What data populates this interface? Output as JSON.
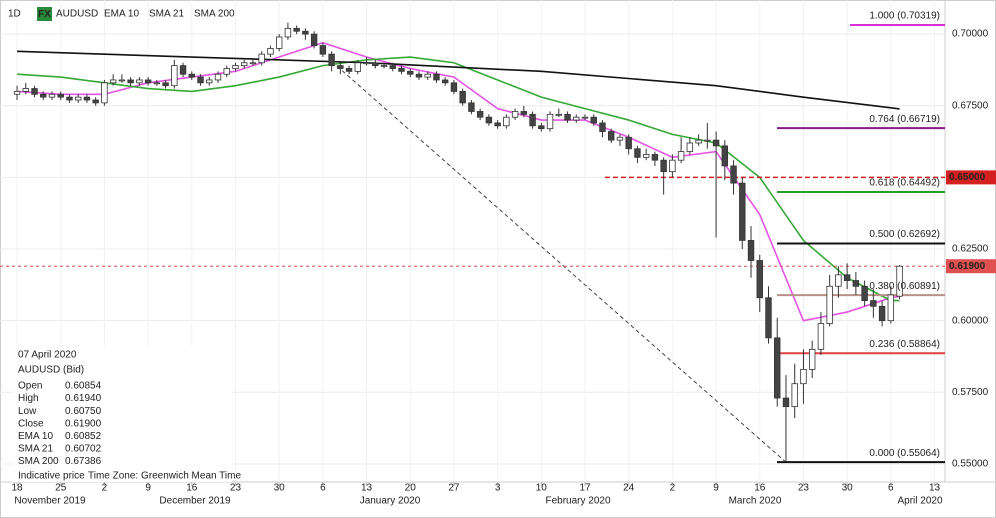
{
  "chart_data": {
    "type": "candlestick",
    "interval": "1D",
    "badge": "FX",
    "symbol": "AUDUSD",
    "open": [
      0.679,
      0.68,
      0.681,
      0.679,
      0.678,
      0.679,
      0.678,
      0.677,
      0.678,
      0.677,
      0.676,
      0.683,
      0.684,
      0.684,
      0.683,
      0.684,
      0.683,
      0.683,
      0.682,
      0.689,
      0.686,
      0.685,
      0.683,
      0.684,
      0.686,
      0.688,
      0.689,
      0.69,
      0.69,
      0.693,
      0.695,
      0.699,
      0.702,
      0.701,
      0.7,
      0.696,
      0.693,
      0.689,
      0.688,
      0.687,
      0.69,
      0.69,
      0.689,
      0.689,
      0.688,
      0.687,
      0.686,
      0.685,
      0.686,
      0.684,
      0.683,
      0.68,
      0.676,
      0.673,
      0.671,
      0.669,
      0.668,
      0.671,
      0.673,
      0.672,
      0.668,
      0.667,
      0.672,
      0.672,
      0.67,
      0.671,
      0.671,
      0.669,
      0.666,
      0.663,
      0.664,
      0.66,
      0.657,
      0.658,
      0.656,
      0.652,
      0.656,
      0.659,
      0.662,
      0.663,
      0.663,
      0.661,
      0.654,
      0.648,
      0.628,
      0.621,
      0.608,
      0.594,
      0.573,
      0.57,
      0.578,
      0.583,
      0.59,
      0.599,
      0.612,
      0.616,
      0.614,
      0.612,
      0.607,
      0.605,
      0.6,
      0.60854
    ],
    "high": [
      0.682,
      0.683,
      0.682,
      0.68,
      0.68,
      0.68,
      0.679,
      0.679,
      0.679,
      0.678,
      0.684,
      0.686,
      0.686,
      0.685,
      0.685,
      0.685,
      0.684,
      0.684,
      0.691,
      0.69,
      0.687,
      0.686,
      0.685,
      0.687,
      0.689,
      0.69,
      0.691,
      0.691,
      0.694,
      0.696,
      0.7,
      0.704,
      0.703,
      0.702,
      0.701,
      0.697,
      0.694,
      0.69,
      0.689,
      0.691,
      0.692,
      0.691,
      0.69,
      0.69,
      0.689,
      0.688,
      0.687,
      0.687,
      0.687,
      0.685,
      0.684,
      0.681,
      0.677,
      0.674,
      0.672,
      0.67,
      0.672,
      0.674,
      0.675,
      0.673,
      0.669,
      0.673,
      0.674,
      0.673,
      0.672,
      0.672,
      0.672,
      0.67,
      0.667,
      0.665,
      0.665,
      0.661,
      0.66,
      0.659,
      0.657,
      0.658,
      0.664,
      0.664,
      0.665,
      0.669,
      0.666,
      0.663,
      0.656,
      0.65,
      0.633,
      0.623,
      0.612,
      0.601,
      0.581,
      0.585,
      0.59,
      0.593,
      0.603,
      0.616,
      0.619,
      0.62,
      0.617,
      0.614,
      0.611,
      0.607,
      0.612,
      0.6194
    ],
    "low": [
      0.677,
      0.679,
      0.678,
      0.677,
      0.677,
      0.677,
      0.676,
      0.676,
      0.676,
      0.675,
      0.675,
      0.682,
      0.683,
      0.682,
      0.682,
      0.682,
      0.682,
      0.681,
      0.681,
      0.685,
      0.684,
      0.682,
      0.682,
      0.683,
      0.685,
      0.687,
      0.688,
      0.689,
      0.689,
      0.692,
      0.694,
      0.698,
      0.7,
      0.698,
      0.695,
      0.692,
      0.687,
      0.686,
      0.686,
      0.686,
      0.689,
      0.688,
      0.688,
      0.687,
      0.686,
      0.685,
      0.684,
      0.684,
      0.683,
      0.682,
      0.679,
      0.675,
      0.672,
      0.67,
      0.668,
      0.667,
      0.667,
      0.67,
      0.671,
      0.667,
      0.666,
      0.666,
      0.671,
      0.669,
      0.669,
      0.67,
      0.668,
      0.664,
      0.662,
      0.661,
      0.658,
      0.655,
      0.656,
      0.654,
      0.644,
      0.65,
      0.655,
      0.658,
      0.661,
      0.66,
      0.629,
      0.649,
      0.644,
      0.625,
      0.615,
      0.603,
      0.592,
      0.57,
      0.551,
      0.566,
      0.571,
      0.58,
      0.588,
      0.598,
      0.608,
      0.611,
      0.609,
      0.605,
      0.601,
      0.598,
      0.599,
      0.6075
    ],
    "close": [
      0.68,
      0.681,
      0.679,
      0.678,
      0.679,
      0.678,
      0.677,
      0.678,
      0.677,
      0.676,
      0.683,
      0.684,
      0.684,
      0.683,
      0.684,
      0.683,
      0.683,
      0.682,
      0.689,
      0.686,
      0.685,
      0.683,
      0.684,
      0.686,
      0.688,
      0.689,
      0.69,
      0.69,
      0.693,
      0.695,
      0.699,
      0.702,
      0.701,
      0.7,
      0.696,
      0.693,
      0.689,
      0.688,
      0.687,
      0.69,
      0.69,
      0.689,
      0.689,
      0.688,
      0.687,
      0.686,
      0.685,
      0.686,
      0.684,
      0.683,
      0.68,
      0.676,
      0.673,
      0.671,
      0.669,
      0.668,
      0.671,
      0.673,
      0.672,
      0.668,
      0.667,
      0.672,
      0.672,
      0.67,
      0.671,
      0.671,
      0.669,
      0.666,
      0.663,
      0.664,
      0.66,
      0.657,
      0.658,
      0.656,
      0.652,
      0.656,
      0.659,
      0.662,
      0.663,
      0.663,
      0.661,
      0.654,
      0.648,
      0.628,
      0.621,
      0.608,
      0.594,
      0.573,
      0.57,
      0.578,
      0.583,
      0.59,
      0.599,
      0.612,
      0.616,
      0.614,
      0.612,
      0.607,
      0.605,
      0.6,
      0.609,
      0.619
    ],
    "lines": [
      {
        "name": "EMA 10",
        "color": "#e454e4",
        "x": [
          0,
          5,
          10,
          15,
          20,
          25,
          30,
          35,
          40,
          45,
          50,
          55,
          60,
          65,
          70,
          75,
          80,
          85,
          90,
          95,
          100,
          101
        ],
        "values": [
          0.68,
          0.679,
          0.679,
          0.683,
          0.685,
          0.687,
          0.692,
          0.697,
          0.692,
          0.688,
          0.685,
          0.674,
          0.67,
          0.67,
          0.664,
          0.657,
          0.659,
          0.637,
          0.6,
          0.603,
          0.608,
          0.6085
        ]
      },
      {
        "name": "SMA 21",
        "color": "#35a835",
        "x": [
          0,
          5,
          10,
          15,
          20,
          25,
          30,
          35,
          40,
          45,
          50,
          55,
          60,
          65,
          70,
          75,
          80,
          85,
          90,
          95,
          100,
          101
        ],
        "values": [
          0.686,
          0.685,
          0.683,
          0.681,
          0.68,
          0.682,
          0.685,
          0.689,
          0.691,
          0.692,
          0.69,
          0.684,
          0.678,
          0.674,
          0.67,
          0.665,
          0.662,
          0.65,
          0.628,
          0.615,
          0.607,
          0.607
        ]
      },
      {
        "name": "SMA 200",
        "color": "#111111",
        "x": [
          0,
          20,
          40,
          60,
          80,
          90,
          101
        ],
        "values": [
          0.694,
          0.692,
          0.69,
          0.687,
          0.682,
          0.678,
          0.6739
        ]
      }
    ],
    "fib_levels": [
      {
        "label": "1.000 (0.70319)",
        "value": 0.70319,
        "color": "#d930d9"
      },
      {
        "label": "0.764 (0.66719)",
        "value": 0.66719,
        "color": "#8a1a8a"
      },
      {
        "label": "0.618 (0.64492)",
        "value": 0.64492,
        "color": "#28a028"
      },
      {
        "label": "0.500 (0.62692)",
        "value": 0.62692,
        "color": "#111111"
      },
      {
        "label": "0.380 (0.60891)",
        "value": 0.60891,
        "color": "#b89088"
      },
      {
        "label": "0.236 (0.58864)",
        "value": 0.58864,
        "color": "#e04040"
      },
      {
        "label": "0.000 (0.55064)",
        "value": 0.55064,
        "color": "#111111"
      }
    ],
    "price_lines": [
      {
        "value": 0.65,
        "label": "0.65000",
        "color": "#d42020"
      },
      {
        "value": 0.619,
        "label": "0.61900",
        "color": "#e05050"
      }
    ],
    "trendline": {
      "x": [
        36,
        88
      ],
      "y": [
        0.6905,
        0.5506
      ]
    },
    "ylim": [
      0.5437,
      0.7119
    ],
    "xlim": [
      -1.95,
      106.2
    ],
    "yticks": [
      {
        "value": 0.7,
        "label": "0.70000"
      },
      {
        "value": 0.675,
        "label": "0.67500"
      },
      {
        "value": 0.65,
        "label": "0.65000"
      },
      {
        "value": 0.625,
        "label": "0.62500"
      },
      {
        "value": 0.6,
        "label": "0.60000"
      },
      {
        "value": 0.575,
        "label": "0.57500"
      },
      {
        "value": 0.55,
        "label": "0.55000"
      }
    ],
    "xticks": [
      {
        "value": 0,
        "label": "18"
      },
      {
        "value": 5,
        "label": "25"
      },
      {
        "value": 10,
        "label": "2"
      },
      {
        "value": 15,
        "label": "9"
      },
      {
        "value": 20,
        "label": "16"
      },
      {
        "value": 25,
        "label": "23"
      },
      {
        "value": 30,
        "label": "30"
      },
      {
        "value": 35,
        "label": "6"
      },
      {
        "value": 40,
        "label": "13"
      },
      {
        "value": 45,
        "label": "20"
      },
      {
        "value": 50,
        "label": "27"
      },
      {
        "value": 55,
        "label": "3"
      },
      {
        "value": 60,
        "label": "10"
      },
      {
        "value": 65,
        "label": "17"
      },
      {
        "value": 70,
        "label": "24"
      },
      {
        "value": 75,
        "label": "2"
      },
      {
        "value": 80,
        "label": "9"
      },
      {
        "value": 85,
        "label": "16"
      },
      {
        "value": 90,
        "label": "23"
      },
      {
        "value": 95,
        "label": "30"
      },
      {
        "value": 100,
        "label": "6"
      },
      {
        "value": 105,
        "label": "13"
      }
    ],
    "months": [
      "November 2019",
      "December 2019",
      "January 2020",
      "February 2020",
      "March 2020",
      "April 2020"
    ],
    "grid": true,
    "info": {
      "date": "07 April 2020",
      "instrument": "AUDUSD (Bid)",
      "rows": [
        [
          "Open",
          "0.60854"
        ],
        [
          "High",
          "0.61940"
        ],
        [
          "Low",
          "0.60750"
        ],
        [
          "Close",
          "0.61900"
        ],
        [
          "EMA 10",
          "0.60852"
        ],
        [
          "SMA 21",
          "0.60702"
        ],
        [
          "SMA 200",
          "0.67386"
        ]
      ],
      "footer": [
        "Indicative price",
        "Time Zone: Greenwich Mean Time"
      ]
    }
  }
}
